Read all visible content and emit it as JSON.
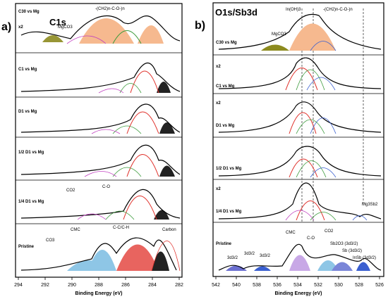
{
  "panels": [
    {
      "letter": "a)",
      "title": "C1s",
      "xlabel": "Binding Energy (eV)",
      "xticks": [
        "294",
        "292",
        "290",
        "288",
        "286",
        "284",
        "282"
      ],
      "rows": [
        {
          "label": "C30 vs Mg",
          "scale": "x2"
        },
        {
          "label": "C1 vs Mg"
        },
        {
          "label": "D1 vs Mg"
        },
        {
          "label": "1/2 D1 vs Mg"
        },
        {
          "label": "1/4 D1 vs Mg"
        },
        {
          "label": "Pristine"
        }
      ],
      "annotations": [
        "MgCO3",
        "-(CH2)n-C-O-)n",
        "CO2",
        "C-O",
        "CO3",
        "CMC",
        "C-C/C-H",
        "Carbon"
      ]
    },
    {
      "letter": "b)",
      "title": "O1s/Sb3d",
      "xlabel": "Binding Energy (eV)",
      "xticks": [
        "542",
        "540",
        "538",
        "536",
        "534",
        "532",
        "530",
        "528",
        "526"
      ],
      "rows": [
        {
          "label": "C30 vs Mg"
        },
        {
          "label": "C1 vs Mg",
          "scale": "x2"
        },
        {
          "label": "D1 vs Mg",
          "scale": "x2"
        },
        {
          "label": "1/2 D1 vs Mg"
        },
        {
          "label": "1/4 D1 vs Mg",
          "scale": "x2"
        },
        {
          "label": "Pristine"
        }
      ],
      "annotations": [
        "In(OH)3",
        "-(CH2)n-C-O-)n",
        "MgCO3",
        "Mg3Sb2",
        "CMC",
        "C-O",
        "CO2",
        "Sb2O3 (3d3/2)",
        "Sb (3d3/2)",
        "InSb (3d3/2)",
        "3d3/2"
      ]
    }
  ],
  "colors": {
    "orange_fill": "#f6b98f",
    "olive_fill": "#8d8b1f",
    "blue_fill": "#8ec6e6",
    "dark_fill": "#222222",
    "red_line": "#e0302a",
    "green_line": "#3a9a3a",
    "purple_line": "#c03fc0",
    "blue_line": "#3a5fd0"
  }
}
